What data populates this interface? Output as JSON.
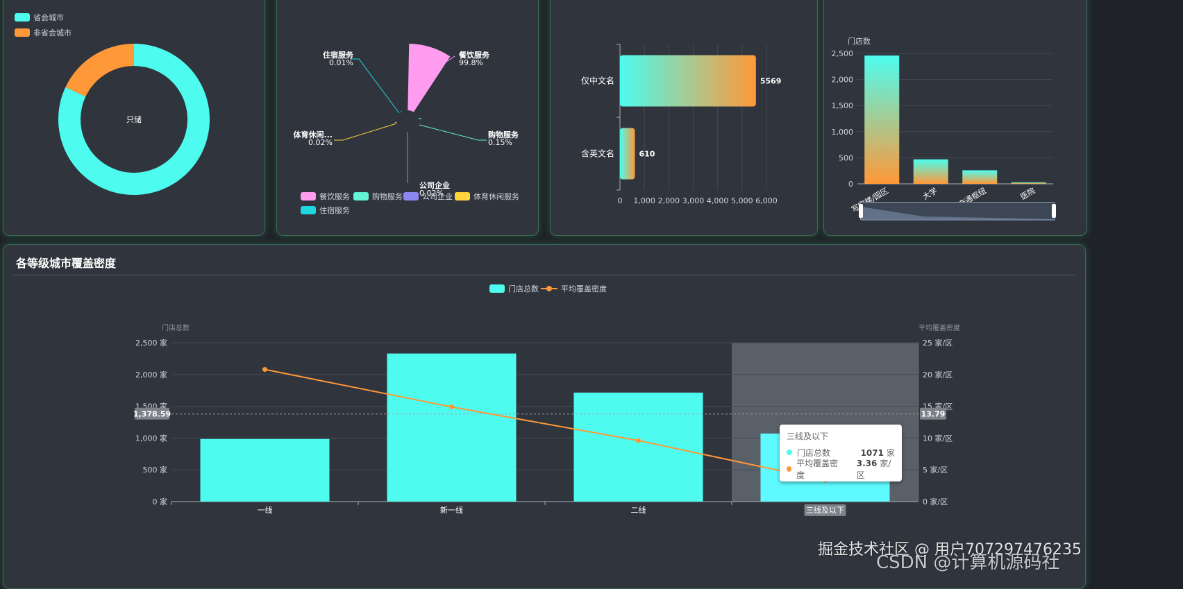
{
  "colors": {
    "cyan": "#4dfcef",
    "orange": "#ff9838",
    "pink": "#ff9cf0",
    "teal": "#63f3d6",
    "purple": "#8c86f2",
    "yellow": "#ffd23c",
    "turquoise": "#1fd5e0"
  },
  "chart_data": [
    {
      "type": "pie",
      "variant": "donut",
      "legend": [
        "省会城市",
        "非省会城市"
      ],
      "center_label": "只储",
      "slices": [
        {
          "name": "省会城市",
          "value": 82,
          "color": "#4dfcef"
        },
        {
          "name": "非省会城市",
          "value": 18,
          "color": "#ff9838"
        }
      ]
    },
    {
      "type": "pie",
      "variant": "rose",
      "legend": [
        "餐饮服务",
        "购物服务",
        "公司企业",
        "体育休闲服务",
        "住宿服务"
      ],
      "slices": [
        {
          "name": "餐饮服务",
          "label": "餐饮服务",
          "percent": "99.8%",
          "value": 99.8,
          "color": "#ff9cf0"
        },
        {
          "name": "购物服务",
          "label": "购物服务",
          "percent": "0.15%",
          "value": 0.15,
          "color": "#63f3d6"
        },
        {
          "name": "公司企业",
          "label": "公司企业",
          "percent": "0.02%",
          "value": 0.02,
          "color": "#8c86f2"
        },
        {
          "name": "体育休闲服务",
          "label": "体育休闲...",
          "percent": "0.02%",
          "value": 0.02,
          "color": "#ffd23c"
        },
        {
          "name": "住宿服务",
          "label": "住宿服务",
          "percent": "0.01%",
          "value": 0.01,
          "color": "#1fd5e0"
        }
      ]
    },
    {
      "type": "bar",
      "orientation": "horizontal",
      "categories": [
        "仅中文名",
        "含英文名"
      ],
      "values": [
        5569,
        610
      ],
      "xlim": [
        0,
        6000
      ],
      "xticks": [
        "0",
        "1,000",
        "2,000",
        "3,000",
        "4,000",
        "5,000",
        "6,000"
      ]
    },
    {
      "type": "bar",
      "ylabel": "门店数",
      "categories": [
        "写字楼/园区",
        "大学",
        "交通枢纽",
        "医院"
      ],
      "values": [
        2460,
        470,
        260,
        30
      ],
      "ylim": [
        0,
        2500
      ],
      "yticks": [
        "0",
        "500",
        "1,000",
        "1,500",
        "2,000",
        "2,500"
      ]
    },
    {
      "type": "bar",
      "title": "各等级城市覆盖密度",
      "legend": [
        "门店总数",
        "平均覆盖密度"
      ],
      "ylabel_left": "门店总数",
      "ylabel_right": "平均覆盖密度",
      "categories": [
        "一线",
        "新一线",
        "二线",
        "三线及以下"
      ],
      "series": [
        {
          "name": "门店总数",
          "type": "bar",
          "values": [
            985,
            2330,
            1715,
            1071
          ],
          "unit": "家"
        },
        {
          "name": "平均覆盖密度",
          "type": "line",
          "values": [
            20.8,
            14.9,
            9.6,
            3.36
          ],
          "unit": "家/区"
        }
      ],
      "ylim_left": [
        0,
        2500
      ],
      "ylim_right": [
        0,
        25
      ],
      "yticks_left": [
        "0 家",
        "500 家",
        "1,000 家",
        "1,500 家",
        "2,000 家",
        "2,500 家"
      ],
      "yticks_right": [
        "0 家/区",
        "5 家/区",
        "10 家/区",
        "15 家/区",
        "20 家/区",
        "25 家/区"
      ],
      "crosshair_left": "1,378.59",
      "crosshair_right": "13.79",
      "crosshair_value": 1378.59,
      "highlight_category": "三线及以下",
      "xpointer_label": "三线及以下",
      "tooltip": {
        "title": "三线及以下",
        "rows": [
          {
            "name": "门店总数",
            "value": "1071",
            "unit": "家"
          },
          {
            "name": "平均覆盖密度",
            "value": "3.36",
            "unit": "家/区"
          }
        ]
      }
    }
  ],
  "watermark": "掘金技术社区 @ 用户707297476235",
  "watermark2": "CSDN @计算机源码社"
}
